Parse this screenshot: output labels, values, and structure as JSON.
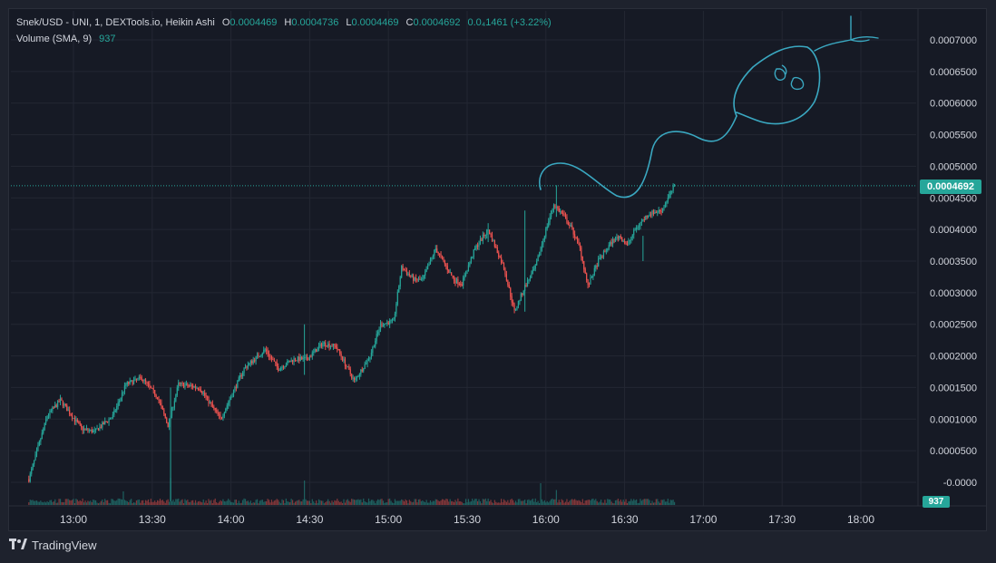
{
  "header": {
    "symbol_title": "Snek/USD - UNI, 1, DEXTools.io, Heikin Ashi",
    "ohlc": [
      {
        "label": "O",
        "value": "0.0004469"
      },
      {
        "label": "H",
        "value": "0.0004736"
      },
      {
        "label": "L",
        "value": "0.0004469"
      },
      {
        "label": "C",
        "value": "0.0004692"
      }
    ],
    "change": "0.0₄1461 (+3.22%)",
    "volume_label": "Volume (SMA, 9)",
    "volume_value": "937"
  },
  "price_scale": {
    "ticks": [
      "0.0007000",
      "0.0006500",
      "0.0006000",
      "0.0005500",
      "0.0005000",
      "0.0004500",
      "0.0004000",
      "0.0003500",
      "0.0003000",
      "0.0002500",
      "0.0002000",
      "0.0001500",
      "0.0001000",
      "0.0000500",
      "-0.0000"
    ],
    "current_price": "0.0004692",
    "current_volume": "937"
  },
  "time_scale": {
    "ticks": [
      "13:00",
      "13:30",
      "14:00",
      "14:30",
      "15:00",
      "15:30",
      "16:00",
      "16:30",
      "17:00",
      "17:30",
      "18:00"
    ]
  },
  "brand": {
    "name": "TradingView",
    "icon": "tradingview-logo-icon"
  },
  "colors": {
    "up": "#26a69a",
    "down": "#ef5350",
    "drawing": "#3aa8c1",
    "grid": "#232733",
    "background": "#161a25"
  },
  "chart_data": {
    "type": "candlestick",
    "price_range": [
      -3e-05,
      0.00074
    ],
    "x_range_minutes": [
      750,
      1100
    ],
    "anchors": [
      {
        "t": 763,
        "close": 5e-06
      },
      {
        "t": 770,
        "close": 0.000105
      },
      {
        "t": 775,
        "close": 0.00013
      },
      {
        "t": 783,
        "close": 8.5e-05
      },
      {
        "t": 788,
        "close": 8e-05
      },
      {
        "t": 795,
        "close": 0.000105
      },
      {
        "t": 800,
        "close": 0.000155
      },
      {
        "t": 806,
        "close": 0.000165
      },
      {
        "t": 812,
        "close": 0.000135
      },
      {
        "t": 816,
        "close": 9e-05
      },
      {
        "t": 820,
        "close": 0.000155
      },
      {
        "t": 828,
        "close": 0.00015
      },
      {
        "t": 836,
        "close": 0.0001
      },
      {
        "t": 845,
        "close": 0.00018
      },
      {
        "t": 853,
        "close": 0.00021
      },
      {
        "t": 858,
        "close": 0.00018
      },
      {
        "t": 864,
        "close": 0.000195
      },
      {
        "t": 869,
        "close": 0.000195
      },
      {
        "t": 875,
        "close": 0.00022
      },
      {
        "t": 880,
        "close": 0.000215
      },
      {
        "t": 887,
        "close": 0.00016
      },
      {
        "t": 893,
        "close": 0.0002
      },
      {
        "t": 897,
        "close": 0.00025
      },
      {
        "t": 902,
        "close": 0.000255
      },
      {
        "t": 905,
        "close": 0.00034
      },
      {
        "t": 910,
        "close": 0.00032
      },
      {
        "t": 913,
        "close": 0.00032
      },
      {
        "t": 918,
        "close": 0.00037
      },
      {
        "t": 925,
        "close": 0.00032
      },
      {
        "t": 928,
        "close": 0.000315
      },
      {
        "t": 933,
        "close": 0.00037
      },
      {
        "t": 938,
        "close": 0.0004
      },
      {
        "t": 944,
        "close": 0.00034
      },
      {
        "t": 948,
        "close": 0.00027
      },
      {
        "t": 952,
        "close": 0.00031
      },
      {
        "t": 956,
        "close": 0.00034
      },
      {
        "t": 960,
        "close": 0.0004
      },
      {
        "t": 963,
        "close": 0.00044
      },
      {
        "t": 967,
        "close": 0.00042
      },
      {
        "t": 970,
        "close": 0.0004
      },
      {
        "t": 973,
        "close": 0.00037
      },
      {
        "t": 976,
        "close": 0.00031
      },
      {
        "t": 980,
        "close": 0.00035
      },
      {
        "t": 985,
        "close": 0.00038
      },
      {
        "t": 988,
        "close": 0.00039
      },
      {
        "t": 991,
        "close": 0.000375
      },
      {
        "t": 994,
        "close": 0.0004
      },
      {
        "t": 999,
        "close": 0.000425
      },
      {
        "t": 1004,
        "close": 0.00043
      },
      {
        "t": 1009,
        "close": 0.0004692
      }
    ],
    "wicks": [
      {
        "t": 817,
        "low": -3e-05,
        "high": 0.00015
      },
      {
        "t": 868,
        "low": 0.00017,
        "high": 0.00025
      },
      {
        "t": 938,
        "low": 0.00038,
        "high": 0.00041
      },
      {
        "t": 952,
        "low": 0.00027,
        "high": 0.00043
      },
      {
        "t": 964,
        "low": 0.00042,
        "high": 0.00047
      },
      {
        "t": 997,
        "low": 0.00035,
        "high": 0.00039
      }
    ],
    "volume_spikes": [
      {
        "t": 817,
        "v": 1.0
      },
      {
        "t": 868,
        "v": 0.9
      },
      {
        "t": 958,
        "v": 0.8
      },
      {
        "t": 964,
        "v": 0.55
      },
      {
        "t": 799,
        "v": 0.5
      }
    ]
  }
}
